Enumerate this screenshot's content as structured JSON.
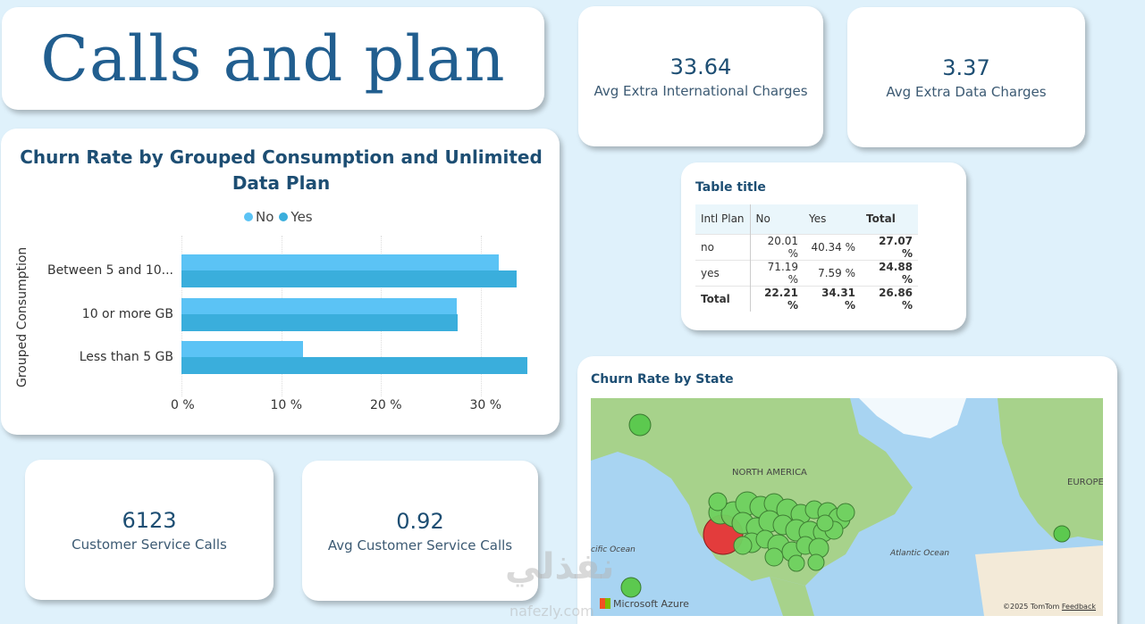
{
  "page_title": "Calls and plan",
  "kpis": {
    "intl_charges": {
      "value": "33.64",
      "label": "Avg Extra International Charges"
    },
    "data_charges": {
      "value": "3.37",
      "label": "Avg Extra Data Charges"
    },
    "service_calls": {
      "value": "6123",
      "label": "Customer Service Calls"
    },
    "avg_service_calls": {
      "value": "0.92",
      "label": "Avg Customer Service Calls"
    }
  },
  "chart": {
    "title": "Churn Rate by Grouped Consumption and Unlimited Data Plan",
    "ylabel": "Grouped Consumption",
    "legend": [
      {
        "name": "No",
        "color": "#5bc3f5"
      },
      {
        "name": "Yes",
        "color": "#3aaedc"
      }
    ],
    "tick_labels": [
      "0 %",
      "10 %",
      "20 %",
      "30 %"
    ]
  },
  "chart_data": {
    "type": "bar",
    "orientation": "horizontal",
    "title": "Churn Rate by Grouped Consumption and Unlimited Data Plan",
    "ylabel": "Grouped Consumption",
    "xlabel": "",
    "categories": [
      "Between 5 and 10...",
      "10 or more GB",
      "Less than 5 GB"
    ],
    "series": [
      {
        "name": "No",
        "values": [
          31.8,
          27.6,
          12.2
        ]
      },
      {
        "name": "Yes",
        "values": [
          33.6,
          27.7,
          34.7
        ]
      }
    ],
    "xlim": [
      0,
      36
    ],
    "xticks": [
      "0 %",
      "10 %",
      "20 %",
      "30 %"
    ]
  },
  "table": {
    "title": "Table title",
    "headers": [
      "Intl Plan",
      "No",
      "Yes",
      "Total"
    ],
    "rows": [
      [
        "no",
        "20.01 %",
        "40.34 %",
        "27.07 %"
      ],
      [
        "yes",
        "71.19 %",
        "7.59 %",
        "24.88 %"
      ],
      [
        "Total",
        "22.21 %",
        "34.31 %",
        "26.86 %"
      ]
    ]
  },
  "map": {
    "title": "Churn Rate by State",
    "labels": {
      "north_america": "NORTH AMERICA",
      "europe": "EUROPE",
      "atlantic": "Atlantic Ocean",
      "pacific": "cific Ocean"
    },
    "brand": "Microsoft Azure",
    "attribution": "©2025 TomTom",
    "feedback": "Feedback"
  },
  "watermark": {
    "arabic": "نفذلي",
    "latin": "nafezly.com"
  }
}
